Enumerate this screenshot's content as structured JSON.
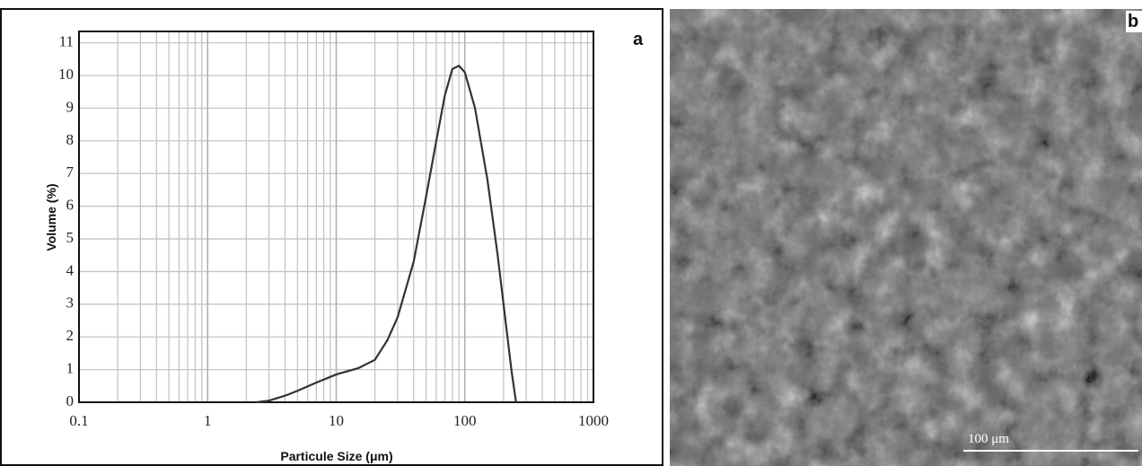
{
  "chart_data": {
    "type": "line",
    "panel_label": "a",
    "x_label": "Particule Size (μm)",
    "y_label": "Volume (%)",
    "x": [
      2.4,
      3,
      4,
      5,
      7,
      10,
      15,
      20,
      25,
      30,
      40,
      50,
      60,
      70,
      80,
      90,
      100,
      120,
      150,
      180,
      200,
      230,
      250
    ],
    "values": [
      0,
      0.05,
      0.2,
      0.35,
      0.6,
      0.85,
      1.05,
      1.3,
      1.9,
      2.6,
      4.3,
      6.3,
      8.0,
      9.4,
      10.2,
      10.3,
      10.1,
      9.0,
      6.8,
      4.5,
      3.0,
      1.0,
      0
    ],
    "color": "#333333",
    "xlog": true,
    "xlim": [
      0.1,
      1000
    ],
    "xticks": [
      0.1,
      1,
      10,
      100,
      1000
    ],
    "x_minor_grid": [
      0.2,
      0.3,
      0.4,
      0.5,
      0.6,
      0.7,
      0.8,
      0.9,
      2,
      3,
      4,
      5,
      6,
      7,
      8,
      9,
      20,
      30,
      40,
      50,
      60,
      70,
      80,
      90,
      200,
      300,
      400,
      500,
      600,
      700,
      800,
      900
    ],
    "ylim": [
      0,
      11.35
    ],
    "yticks": [
      0,
      1,
      2,
      3,
      4,
      5,
      6,
      7,
      8,
      9,
      10,
      11
    ],
    "grid": true
  },
  "image_panel": {
    "label": "b",
    "scale_bar": "100 μm"
  }
}
